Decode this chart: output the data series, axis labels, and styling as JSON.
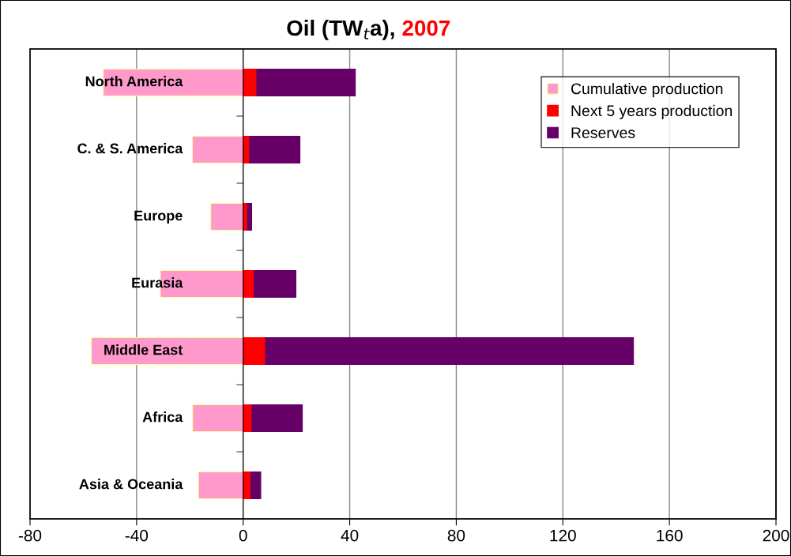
{
  "chart_data": {
    "type": "bar",
    "orientation": "horizontal",
    "stacked": true,
    "title": "Oil (TW$_{t}$a),",
    "subtitle": "2007",
    "categories": [
      "North America",
      "C. & S. America",
      "Europe",
      "Eurasia",
      "Middle East",
      "Africa",
      "Asia & Oceania"
    ],
    "series": [
      {
        "name": "Cumulative production",
        "color": "#ff99cc",
        "values": [
          -52.5,
          -19.1,
          -12.2,
          -31.1,
          -57,
          -19,
          -16.8
        ]
      },
      {
        "name": "Next 5 years production",
        "color": "#ff0000",
        "values": [
          5.1,
          2.4,
          1.6,
          4.1,
          8.4,
          3.3,
          2.9
        ]
      },
      {
        "name": "Reserves",
        "color": "#660066",
        "values": [
          37,
          18.9,
          1.6,
          15.7,
          138.1,
          18.9,
          3.7
        ]
      }
    ],
    "xlim": [
      -80,
      200
    ],
    "xticks": [
      -80,
      -40,
      0,
      40,
      80,
      120,
      160,
      200
    ],
    "grid": "x",
    "legend": "top right"
  }
}
